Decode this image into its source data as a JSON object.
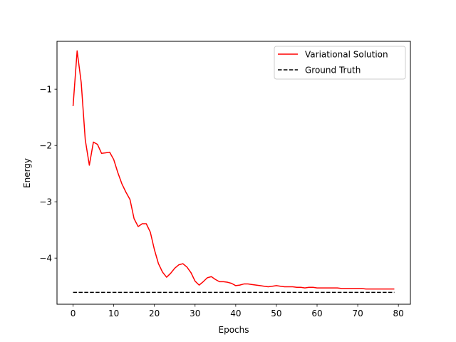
{
  "chart_data": {
    "type": "line",
    "title": "",
    "xlabel": "Epochs",
    "ylabel": "Energy",
    "xlim": [
      -3.95,
      82.95
    ],
    "ylim": [
      -4.82,
      -0.15
    ],
    "xticks": [
      0,
      10,
      20,
      30,
      40,
      50,
      60,
      70,
      80
    ],
    "xtick_labels": [
      "0",
      "10",
      "20",
      "30",
      "40",
      "50",
      "60",
      "70",
      "80"
    ],
    "yticks": [
      -4,
      -3,
      -2,
      -1
    ],
    "ytick_labels": [
      "−4",
      "−3",
      "−2",
      "−1"
    ],
    "grid": false,
    "legend_position": "top-right",
    "series": [
      {
        "name": "Variational Solution",
        "color": "#ff0000",
        "style": "solid",
        "x": [
          0,
          1,
          2,
          3,
          4,
          5,
          6,
          7,
          8,
          9,
          10,
          11,
          12,
          13,
          14,
          15,
          16,
          17,
          18,
          19,
          20,
          21,
          22,
          23,
          24,
          25,
          26,
          27,
          28,
          29,
          30,
          31,
          32,
          33,
          34,
          35,
          36,
          37,
          38,
          39,
          40,
          41,
          42,
          43,
          44,
          45,
          46,
          47,
          48,
          49,
          50,
          51,
          52,
          53,
          54,
          55,
          56,
          57,
          58,
          59,
          60,
          61,
          62,
          63,
          64,
          65,
          66,
          67,
          68,
          69,
          70,
          71,
          72,
          73,
          74,
          75,
          76,
          77,
          78,
          79
        ],
        "y": [
          -1.3,
          -0.32,
          -0.88,
          -1.9,
          -2.35,
          -1.94,
          -1.98,
          -2.14,
          -2.13,
          -2.12,
          -2.25,
          -2.48,
          -2.68,
          -2.83,
          -2.96,
          -3.3,
          -3.44,
          -3.39,
          -3.39,
          -3.54,
          -3.85,
          -4.1,
          -4.25,
          -4.34,
          -4.27,
          -4.18,
          -4.12,
          -4.1,
          -4.16,
          -4.26,
          -4.41,
          -4.48,
          -4.42,
          -4.35,
          -4.33,
          -4.38,
          -4.42,
          -4.42,
          -4.43,
          -4.45,
          -4.49,
          -4.48,
          -4.46,
          -4.46,
          -4.47,
          -4.48,
          -4.49,
          -4.5,
          -4.51,
          -4.5,
          -4.49,
          -4.5,
          -4.51,
          -4.51,
          -4.51,
          -4.52,
          -4.52,
          -4.53,
          -4.52,
          -4.52,
          -4.53,
          -4.53,
          -4.53,
          -4.53,
          -4.53,
          -4.53,
          -4.54,
          -4.54,
          -4.54,
          -4.54,
          -4.54,
          -4.54,
          -4.55,
          -4.55,
          -4.55,
          -4.55,
          -4.55,
          -4.55,
          -4.55,
          -4.55
        ]
      },
      {
        "name": "Ground Truth",
        "color": "#000000",
        "style": "dashed",
        "x": [
          0,
          79
        ],
        "y": [
          -4.61,
          -4.61
        ]
      }
    ]
  }
}
